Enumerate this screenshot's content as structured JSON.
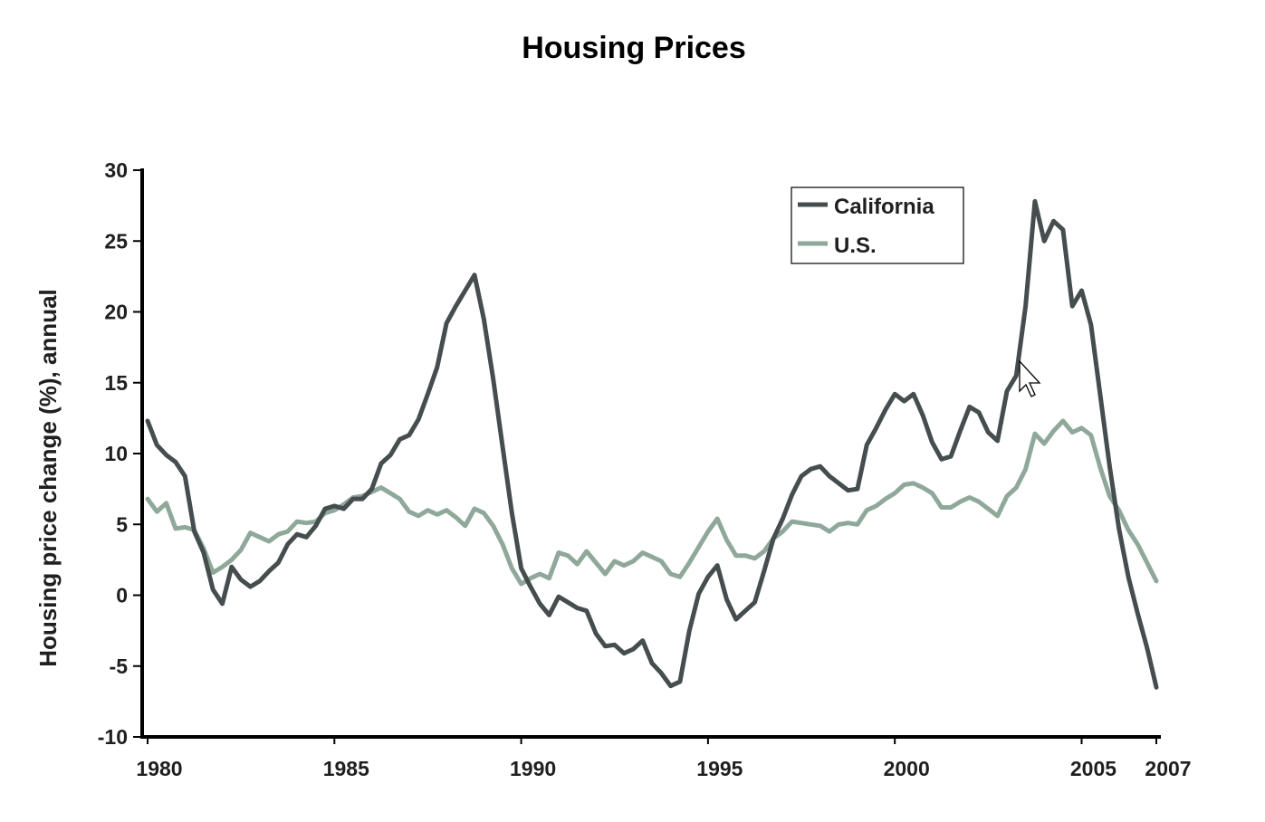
{
  "chart_data": {
    "type": "line",
    "title": "Housing Prices",
    "xlabel": "",
    "ylabel": "Housing price change (%), annual",
    "xlim": [
      1980,
      2007
    ],
    "ylim": [
      -10,
      30
    ],
    "xticks": [
      {
        "value": 1980,
        "label": "1980"
      },
      {
        "value": 1985,
        "label": "1985"
      },
      {
        "value": 1990,
        "label": "1990"
      },
      {
        "value": 1995,
        "label": "1995"
      },
      {
        "value": 2000,
        "label": "2000"
      },
      {
        "value": 2005,
        "label": "2005"
      },
      {
        "value": 2007,
        "label": "2007"
      }
    ],
    "yticks": [
      {
        "value": 30,
        "label": "30"
      },
      {
        "value": 25,
        "label": "25"
      },
      {
        "value": 20,
        "label": "20"
      },
      {
        "value": 15,
        "label": "15"
      },
      {
        "value": 10,
        "label": "10"
      },
      {
        "value": 5,
        "label": "5"
      },
      {
        "value": 0,
        "label": "0"
      },
      {
        "value": -5,
        "label": "-5"
      },
      {
        "value": -10,
        "label": "-10"
      }
    ],
    "legend_position": "top-right",
    "series": [
      {
        "name": "California",
        "color": "#454d4f",
        "x": [
          1980.0,
          1980.25,
          1980.5,
          1980.75,
          1981.0,
          1981.25,
          1981.5,
          1981.75,
          1982.0,
          1982.25,
          1982.5,
          1982.75,
          1983.0,
          1983.25,
          1983.5,
          1983.75,
          1984.0,
          1984.25,
          1984.5,
          1984.75,
          1985.0,
          1985.25,
          1985.5,
          1985.75,
          1986.0,
          1986.25,
          1986.5,
          1986.75,
          1987.0,
          1987.25,
          1987.5,
          1987.75,
          1988.0,
          1988.25,
          1988.5,
          1988.75,
          1989.0,
          1989.25,
          1989.5,
          1989.75,
          1990.0,
          1990.25,
          1990.5,
          1990.75,
          1991.0,
          1991.25,
          1991.5,
          1991.75,
          1992.0,
          1992.25,
          1992.5,
          1992.75,
          1993.0,
          1993.25,
          1993.5,
          1993.75,
          1994.0,
          1994.25,
          1994.5,
          1994.75,
          1995.0,
          1995.25,
          1995.5,
          1995.75,
          1996.0,
          1996.25,
          1996.5,
          1996.75,
          1997.0,
          1997.25,
          1997.5,
          1997.75,
          1998.0,
          1998.25,
          1998.5,
          1998.75,
          1999.0,
          1999.25,
          1999.5,
          1999.75,
          2000.0,
          2000.25,
          2000.5,
          2000.75,
          2001.0,
          2001.25,
          2001.5,
          2001.75,
          2002.0,
          2002.25,
          2002.5,
          2002.75,
          2003.0,
          2003.25,
          2003.5,
          2003.75,
          2004.0,
          2004.25,
          2004.5,
          2004.75,
          2005.0,
          2005.25,
          2005.5,
          2005.75,
          2006.0,
          2006.25,
          2006.5,
          2006.75,
          2007.0
        ],
        "values": [
          12.3,
          10.6,
          9.9,
          9.4,
          8.4,
          4.5,
          3.0,
          0.4,
          -0.6,
          2.0,
          1.1,
          0.6,
          1.0,
          1.7,
          2.3,
          3.6,
          4.3,
          4.1,
          4.9,
          6.1,
          6.3,
          6.1,
          6.8,
          6.8,
          7.5,
          9.3,
          9.9,
          11.0,
          11.3,
          12.4,
          14.2,
          16.1,
          19.2,
          20.4,
          21.5,
          22.6,
          19.5,
          15.3,
          10.5,
          5.8,
          1.9,
          0.6,
          -0.6,
          -1.4,
          -0.1,
          -0.5,
          -0.9,
          -1.1,
          -2.7,
          -3.6,
          -3.5,
          -4.1,
          -3.8,
          -3.2,
          -4.8,
          -5.5,
          -6.4,
          -6.1,
          -2.5,
          0.1,
          1.3,
          2.1,
          -0.3,
          -1.7,
          -1.1,
          -0.5,
          1.7,
          4.0,
          5.4,
          7.1,
          8.4,
          8.9,
          9.1,
          8.4,
          7.9,
          7.4,
          7.5,
          10.6,
          11.8,
          13.1,
          14.2,
          13.7,
          14.2,
          12.7,
          10.8,
          9.6,
          9.8,
          11.6,
          13.3,
          12.9,
          11.5,
          10.9,
          14.4,
          15.5,
          20.4,
          27.8,
          25.0,
          26.4,
          25.8,
          20.4,
          21.5,
          19.1,
          14.1,
          9.1,
          4.7,
          1.3,
          -1.3,
          -3.7,
          -6.5
        ]
      },
      {
        "name": "U.S.",
        "color": "#8fa89a",
        "x": [
          1980.0,
          1980.25,
          1980.5,
          1980.75,
          1981.0,
          1981.25,
          1981.5,
          1981.75,
          1982.0,
          1982.25,
          1982.5,
          1982.75,
          1983.0,
          1983.25,
          1983.5,
          1983.75,
          1984.0,
          1984.25,
          1984.5,
          1984.75,
          1985.0,
          1985.25,
          1985.5,
          1985.75,
          1986.0,
          1986.25,
          1986.5,
          1986.75,
          1987.0,
          1987.25,
          1987.5,
          1987.75,
          1988.0,
          1988.25,
          1988.5,
          1988.75,
          1989.0,
          1989.25,
          1989.5,
          1989.75,
          1990.0,
          1990.25,
          1990.5,
          1990.75,
          1991.0,
          1991.25,
          1991.5,
          1991.75,
          1992.0,
          1992.25,
          1992.5,
          1992.75,
          1993.0,
          1993.25,
          1993.5,
          1993.75,
          1994.0,
          1994.25,
          1994.5,
          1994.75,
          1995.0,
          1995.25,
          1995.5,
          1995.75,
          1996.0,
          1996.25,
          1996.5,
          1996.75,
          1997.0,
          1997.25,
          1997.5,
          1997.75,
          1998.0,
          1998.25,
          1998.5,
          1998.75,
          1999.0,
          1999.25,
          1999.5,
          1999.75,
          2000.0,
          2000.25,
          2000.5,
          2000.75,
          2001.0,
          2001.25,
          2001.5,
          2001.75,
          2002.0,
          2002.25,
          2002.5,
          2002.75,
          2003.0,
          2003.25,
          2003.5,
          2003.75,
          2004.0,
          2004.25,
          2004.5,
          2004.75,
          2005.0,
          2005.25,
          2005.5,
          2005.75,
          2006.0,
          2006.25,
          2006.5,
          2006.75,
          2007.0
        ],
        "values": [
          6.8,
          5.9,
          6.5,
          4.7,
          4.8,
          4.6,
          3.3,
          1.6,
          2.0,
          2.5,
          3.2,
          4.4,
          4.1,
          3.8,
          4.3,
          4.5,
          5.2,
          5.1,
          5.2,
          5.8,
          6.0,
          6.4,
          6.9,
          7.0,
          7.3,
          7.6,
          7.2,
          6.8,
          5.9,
          5.6,
          6.0,
          5.7,
          6.0,
          5.5,
          4.9,
          6.1,
          5.8,
          4.9,
          3.6,
          1.9,
          0.8,
          1.2,
          1.5,
          1.2,
          3.0,
          2.8,
          2.2,
          3.1,
          2.3,
          1.5,
          2.4,
          2.1,
          2.4,
          3.0,
          2.7,
          2.4,
          1.5,
          1.3,
          2.3,
          3.4,
          4.5,
          5.4,
          3.9,
          2.8,
          2.8,
          2.6,
          3.1,
          4.0,
          4.5,
          5.2,
          5.1,
          5.0,
          4.9,
          4.5,
          5.0,
          5.1,
          5.0,
          6.0,
          6.3,
          6.8,
          7.2,
          7.8,
          7.9,
          7.6,
          7.2,
          6.2,
          6.2,
          6.6,
          6.9,
          6.6,
          6.1,
          5.6,
          7.0,
          7.6,
          8.9,
          11.4,
          10.7,
          11.6,
          12.3,
          11.5,
          11.8,
          11.3,
          9.0,
          7.0,
          6.0,
          4.6,
          3.6,
          2.3,
          1.0
        ]
      }
    ]
  }
}
